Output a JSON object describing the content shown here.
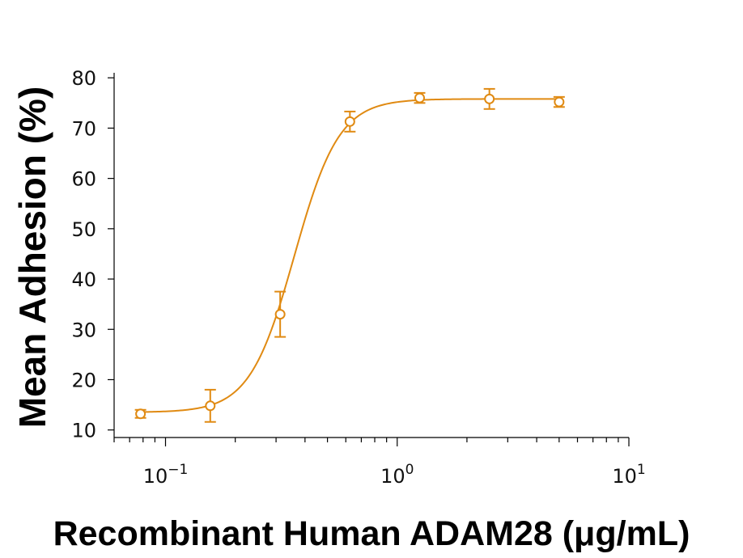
{
  "chart_data": {
    "type": "scatter",
    "xlabel": "Recombinant Human ADAM28 (μg/mL)",
    "ylabel": "Mean Adhesion (%)",
    "x_scale": "log",
    "xlim": [
      0.06,
      10
    ],
    "ylim": [
      8.5,
      81
    ],
    "x_ticks": [
      {
        "value": 0.1,
        "base": "10",
        "exp": "−1"
      },
      {
        "value": 1,
        "base": "10",
        "exp": "0"
      },
      {
        "value": 10,
        "base": "10",
        "exp": "1"
      }
    ],
    "y_ticks": [
      10,
      20,
      30,
      40,
      50,
      60,
      70,
      80
    ],
    "grid": false,
    "color": "#E08A12",
    "series": [
      {
        "x": [
          0.078,
          0.156,
          0.3125,
          0.625,
          1.25,
          2.5,
          5.0
        ],
        "y": [
          13.2,
          14.8,
          33.0,
          71.3,
          76.0,
          75.8,
          75.2
        ],
        "error": [
          0.8,
          3.2,
          4.5,
          2.0,
          1.0,
          2.0,
          1.0
        ]
      }
    ],
    "fit": {
      "model": "4PL",
      "bottom": 13.5,
      "top": 75.8,
      "ec50": 0.36,
      "hill": 4.5
    }
  }
}
